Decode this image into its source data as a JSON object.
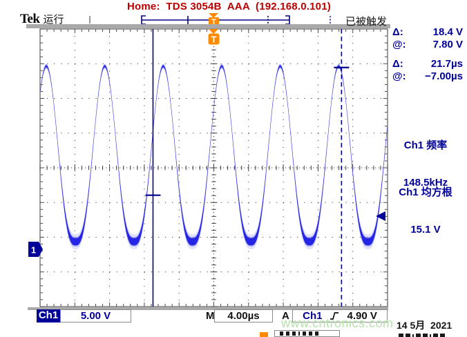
{
  "header": {
    "logo": "Tek",
    "run_status": "运行",
    "title": "Home:  TDS 3054B  AAA  (192.168.0.101)",
    "trigger_status": "已被触发"
  },
  "markers": {
    "trigger_flag": "T",
    "channel_ref": "1"
  },
  "measurements": {
    "d1_label": "Δ:",
    "d1_value": "18.4 V",
    "a1_label": "@:",
    "a1_value": "7.80 V",
    "d2_label": "Δ:",
    "d2_value": "21.7µs",
    "a2_label": "@:",
    "a2_value": "−7.00µs",
    "freq_label": "Ch1 频率",
    "freq_value": "148.5kHz",
    "rms_label": "Ch1 均方根",
    "rms_value": "15.1 V"
  },
  "readouts": {
    "ch_badge": "Ch1",
    "ch_scale": "5.00 V",
    "timebase_label": "M",
    "timebase": "4.00µs",
    "trigger_label": "A",
    "trigger_source": "Ch1",
    "trigger_edge": "rising",
    "trigger_level": "4.90 V"
  },
  "footer": {
    "watermark": "www.cntronics.com",
    "date": "14 5月  2021"
  },
  "colors": {
    "title_red": "#bb0000",
    "navy": "#000099",
    "trace_blue": "#1d1de4",
    "accent_orange": "#ff8a00",
    "watermark_green": "#b6e2ac"
  },
  "chart_data": {
    "type": "line",
    "instrument": "Tektronix TDS 3054B oscilloscope trace",
    "title": "",
    "x_axis": {
      "label": "time",
      "us_per_div": 4.0,
      "divisions": 10,
      "total_us": 40
    },
    "y_axis": {
      "label": "Ch1 voltage",
      "v_per_div": 5.0,
      "divisions": 8,
      "ground_ref_div_from_bottom": 1.65
    },
    "grid": "dotted 10x8 divisions, center crosshair with minor ticks, ruler ticks on borders",
    "legend_position": "none",
    "series": [
      {
        "name": "Ch1",
        "color": "#1d1de4",
        "shape": "sine with flattened noisy bottoms",
        "frequency_khz": 148.5,
        "period_us": 6.73,
        "v_max": 26.4,
        "v_min": 1.1,
        "rms_v": 15.1,
        "first_peak_us_from_left_edge": 0.72,
        "flatten_exponent": 1.45
      }
    ],
    "cursors": {
      "type": "vertical bars",
      "cursor1": {
        "style": "solid",
        "t_us_from_trigger": -7.0,
        "v_marker": 7.8
      },
      "cursor2": {
        "style": "dashed",
        "t_us_from_trigger": 14.7,
        "v_marker": 26.2
      },
      "delta_t_us": 21.7,
      "delta_v": 18.4
    },
    "trigger": {
      "source": "Ch1",
      "slope": "rising",
      "level_v": 4.9,
      "position_us": 0
    }
  }
}
